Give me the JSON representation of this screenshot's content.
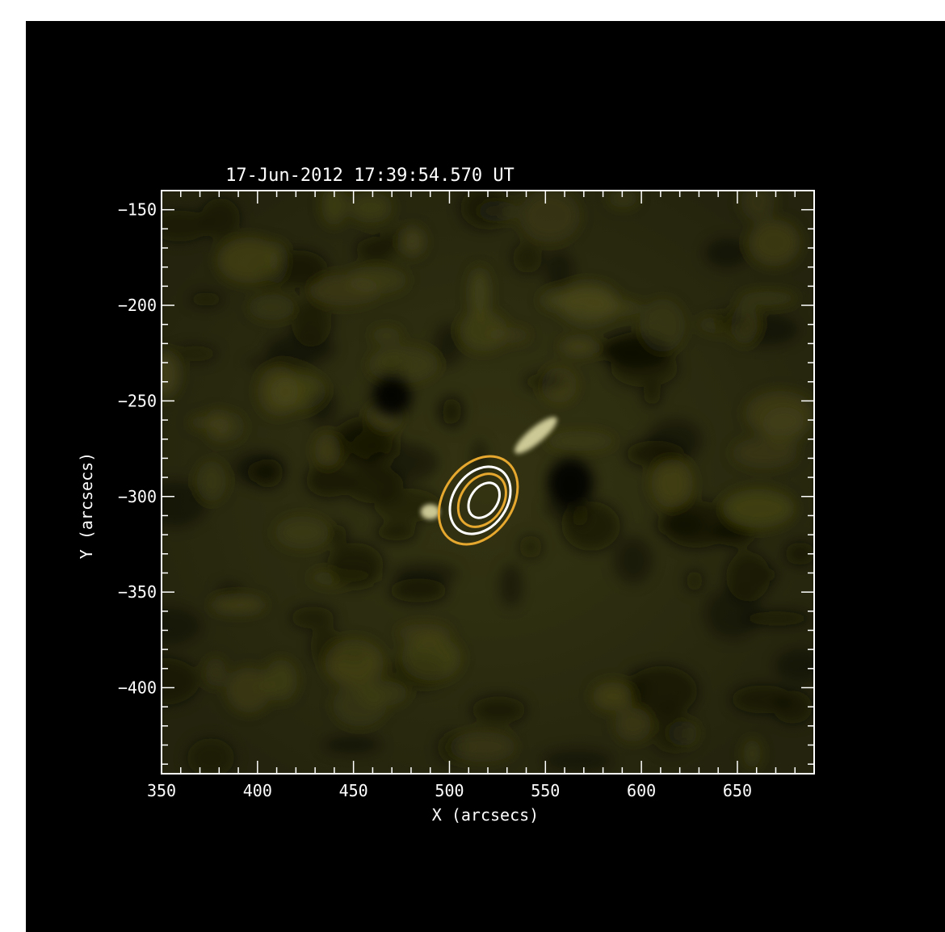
{
  "chart_data": {
    "type": "heatmap",
    "title": "17-Jun-2012 17:39:54.570 UT",
    "xlabel": "X (arcsecs)",
    "ylabel": "Y (arcsecs)",
    "xlim": [
      350,
      690
    ],
    "ylim": [
      -445,
      -140
    ],
    "x_ticks": [
      350,
      400,
      450,
      500,
      550,
      600,
      650
    ],
    "y_ticks": [
      -150,
      -200,
      -250,
      -300,
      -350,
      -400
    ],
    "x_minor_step": 10,
    "y_minor_step": 10,
    "background_color": "#000000",
    "image_color": "#2a2a10",
    "features": [
      {
        "name": "dark-spot-1",
        "x": 470,
        "y": -248,
        "rx": 10,
        "ry": 10
      },
      {
        "name": "dark-spot-2",
        "x": 563,
        "y": -293,
        "rx": 12,
        "ry": 13
      },
      {
        "name": "bright-kernel",
        "x": 490,
        "y": -308,
        "rx": 5,
        "ry": 4
      },
      {
        "name": "bright-filament",
        "x": 545,
        "y": -268,
        "rx": 14,
        "ry": 4,
        "angle": -40
      }
    ],
    "contours": [
      {
        "color": "#e6a82e",
        "cx": 515,
        "cy": -302,
        "rx": 25,
        "ry": 18,
        "angle": -55
      },
      {
        "color": "#ffffff",
        "cx": 516,
        "cy": -302,
        "rx": 19,
        "ry": 14,
        "angle": -55
      },
      {
        "color": "#e6a82e",
        "cx": 517,
        "cy": -302,
        "rx": 15,
        "ry": 11,
        "angle": -55
      },
      {
        "color": "#ffffff",
        "cx": 518,
        "cy": -302,
        "rx": 10,
        "ry": 7,
        "angle": -55
      }
    ]
  }
}
